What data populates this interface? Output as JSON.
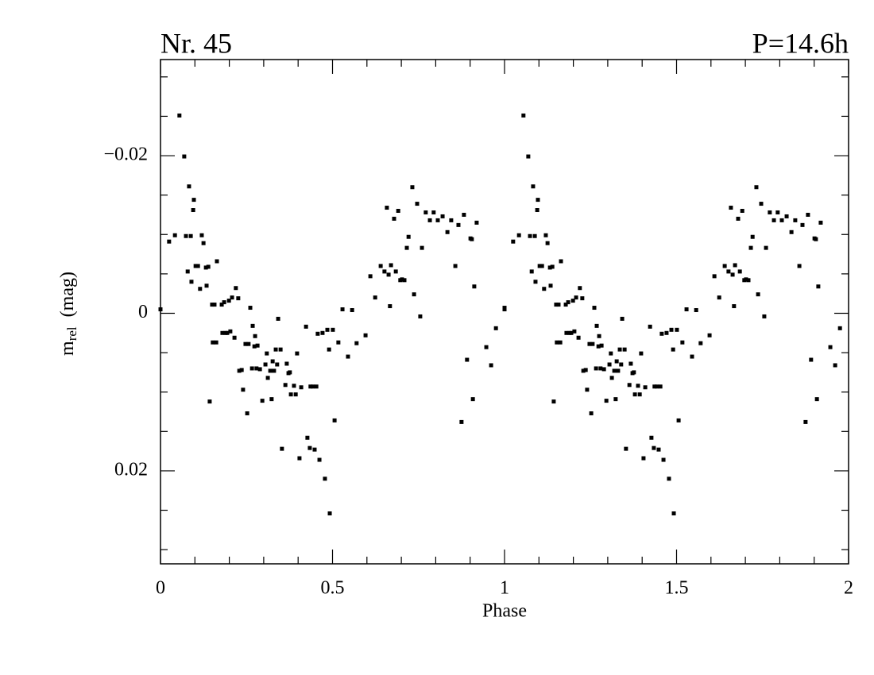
{
  "chart_data": {
    "type": "scatter",
    "title": "Nr. 45",
    "subtitle": "P=14.6h",
    "xlabel": "Phase",
    "ylabel": {
      "text": "m",
      "subscript": "rel",
      "unit": "(mag)"
    },
    "xlim": [
      0,
      2
    ],
    "ylim": [
      -0.0322,
      0.0318
    ],
    "y_inverted": true,
    "xticks": [
      0,
      0.5,
      1,
      1.5,
      2
    ],
    "xminorticks": [
      0.1,
      0.2,
      0.3,
      0.4,
      0.6,
      0.7,
      0.8,
      0.9,
      1.1,
      1.2,
      1.3,
      1.4,
      1.6,
      1.7,
      1.8,
      1.9
    ],
    "yticks": [
      {
        "value": -0.02,
        "label": "−0.02"
      },
      0,
      0.02
    ],
    "yminorticks": [
      -0.03,
      -0.025,
      -0.015,
      -0.01,
      -0.005,
      0.005,
      0.01,
      0.015,
      0.025,
      0.03
    ],
    "color": "#000000",
    "x": [
      0.0,
      0.025,
      0.042,
      0.055,
      0.069,
      0.074,
      0.079,
      0.083,
      0.088,
      0.09,
      0.095,
      0.097,
      0.102,
      0.109,
      0.115,
      0.12,
      0.125,
      0.132,
      0.134,
      0.139,
      0.143,
      0.15,
      0.152,
      0.157,
      0.162,
      0.164,
      0.178,
      0.18,
      0.185,
      0.189,
      0.194,
      0.199,
      0.203,
      0.208,
      0.215,
      0.219,
      0.226,
      0.229,
      0.236,
      0.24,
      0.247,
      0.252,
      0.256,
      0.261,
      0.266,
      0.268,
      0.273,
      0.275,
      0.279,
      0.282,
      0.289,
      0.296,
      0.305,
      0.309,
      0.312,
      0.319,
      0.323,
      0.326,
      0.33,
      0.335,
      0.339,
      0.342,
      0.349,
      0.353,
      0.363,
      0.367,
      0.372,
      0.376,
      0.379,
      0.388,
      0.393,
      0.397,
      0.404,
      0.409,
      0.423,
      0.427,
      0.434,
      0.436,
      0.443,
      0.448,
      0.453,
      0.457,
      0.462,
      0.471,
      0.478,
      0.485,
      0.49,
      0.492,
      0.501,
      0.506,
      0.517,
      0.529,
      0.545,
      0.557,
      0.57,
      0.596,
      0.61,
      0.624,
      0.64,
      0.651,
      0.658,
      0.663,
      0.667,
      0.67,
      0.679,
      0.684,
      0.691,
      0.697,
      0.702,
      0.709,
      0.716,
      0.721,
      0.732,
      0.737,
      0.746,
      0.755,
      0.76,
      0.771,
      0.783,
      0.794,
      0.806,
      0.82,
      0.834,
      0.845,
      0.857,
      0.866,
      0.875,
      0.882,
      0.891,
      0.901,
      0.905,
      0.908,
      0.912,
      0.919,
      0.947,
      0.961,
      0.975,
      1.0,
      1.0,
      1.025,
      1.042,
      1.055,
      1.069,
      1.074,
      1.079,
      1.083,
      1.088,
      1.09,
      1.095,
      1.097,
      1.102,
      1.109,
      1.115,
      1.12,
      1.125,
      1.132,
      1.134,
      1.139,
      1.143,
      1.15,
      1.152,
      1.157,
      1.162,
      1.164,
      1.178,
      1.18,
      1.185,
      1.189,
      1.194,
      1.199,
      1.203,
      1.208,
      1.215,
      1.219,
      1.226,
      1.229,
      1.236,
      1.24,
      1.247,
      1.252,
      1.256,
      1.261,
      1.266,
      1.268,
      1.273,
      1.275,
      1.279,
      1.282,
      1.289,
      1.296,
      1.305,
      1.309,
      1.312,
      1.319,
      1.323,
      1.326,
      1.33,
      1.335,
      1.339,
      1.342,
      1.349,
      1.353,
      1.363,
      1.367,
      1.372,
      1.376,
      1.379,
      1.388,
      1.393,
      1.397,
      1.404,
      1.409,
      1.423,
      1.427,
      1.434,
      1.436,
      1.443,
      1.448,
      1.453,
      1.457,
      1.462,
      1.471,
      1.478,
      1.485,
      1.49,
      1.492,
      1.501,
      1.506,
      1.517,
      1.529,
      1.545,
      1.557,
      1.57,
      1.596,
      1.61,
      1.624,
      1.64,
      1.651,
      1.658,
      1.663,
      1.667,
      1.67,
      1.679,
      1.684,
      1.691,
      1.697,
      1.702,
      1.709,
      1.716,
      1.721,
      1.732,
      1.737,
      1.746,
      1.755,
      1.76,
      1.771,
      1.783,
      1.794,
      1.806,
      1.82,
      1.834,
      1.845,
      1.857,
      1.866,
      1.875,
      1.882,
      1.891,
      1.901,
      1.905,
      1.908,
      1.912,
      1.919,
      1.947,
      1.961,
      1.975
    ],
    "y": [
      -0.0005,
      -0.0091,
      -0.0099,
      -0.0251,
      -0.0199,
      -0.0098,
      -0.0053,
      -0.0161,
      -0.0098,
      -0.004,
      -0.0131,
      -0.0144,
      -0.006,
      -0.006,
      -0.0031,
      -0.0099,
      -0.0089,
      -0.0058,
      -0.0035,
      -0.0059,
      0.0112,
      -0.0011,
      0.0037,
      -0.0011,
      0.0037,
      -0.0066,
      -0.0011,
      0.0025,
      -0.0014,
      0.0025,
      0.0025,
      -0.0016,
      0.0023,
      -0.002,
      0.0031,
      -0.0032,
      -0.0019,
      0.0073,
      0.0072,
      0.0097,
      0.0039,
      0.0127,
      0.0039,
      -0.0007,
      0.007,
      0.0016,
      0.0042,
      0.0029,
      0.007,
      0.0041,
      0.0071,
      0.0111,
      0.0065,
      0.0051,
      0.0082,
      0.0073,
      0.0109,
      0.0061,
      0.0073,
      0.0046,
      0.0065,
      0.0007,
      0.0046,
      0.0172,
      0.0091,
      0.0064,
      0.0076,
      0.0075,
      0.0103,
      0.0092,
      0.0103,
      0.0051,
      0.0184,
      0.0094,
      0.0017,
      0.0158,
      0.0171,
      0.0093,
      0.0093,
      0.0173,
      0.0093,
      0.0026,
      0.0186,
      0.0025,
      0.021,
      0.0021,
      0.0046,
      0.0254,
      0.0021,
      0.0136,
      0.0037,
      -0.0005,
      0.0055,
      -0.0004,
      0.0038,
      0.0028,
      -0.0047,
      -0.002,
      -0.006,
      -0.0053,
      -0.0134,
      -0.0049,
      -0.0009,
      -0.0061,
      -0.012,
      -0.0053,
      -0.013,
      -0.0042,
      -0.0043,
      -0.0042,
      -0.0083,
      -0.0097,
      -0.016,
      -0.0024,
      -0.0139,
      0.0004,
      -0.0083,
      -0.0128,
      -0.0118,
      -0.0128,
      -0.0118,
      -0.0123,
      -0.0103,
      -0.0118,
      -0.006,
      -0.0112,
      0.0138,
      -0.0125,
      0.0059,
      -0.0095,
      -0.0094,
      0.0109,
      -0.0034,
      -0.0115,
      0.0043,
      0.0066,
      0.0019,
      -0.0007,
      -0.0005,
      -0.0091,
      -0.0099,
      -0.0251,
      -0.0199,
      -0.0098,
      -0.0053,
      -0.0161,
      -0.0098,
      -0.004,
      -0.0131,
      -0.0144,
      -0.006,
      -0.006,
      -0.0031,
      -0.0099,
      -0.0089,
      -0.0058,
      -0.0035,
      -0.0059,
      0.0112,
      -0.0011,
      0.0037,
      -0.0011,
      0.0037,
      -0.0066,
      -0.0011,
      0.0025,
      -0.0014,
      0.0025,
      0.0025,
      -0.0016,
      0.0023,
      -0.002,
      0.0031,
      -0.0032,
      -0.0019,
      0.0073,
      0.0072,
      0.0097,
      0.0039,
      0.0127,
      0.0039,
      -0.0007,
      0.007,
      0.0016,
      0.0042,
      0.0029,
      0.007,
      0.0041,
      0.0071,
      0.0111,
      0.0065,
      0.0051,
      0.0082,
      0.0073,
      0.0109,
      0.0061,
      0.0073,
      0.0046,
      0.0065,
      0.0007,
      0.0046,
      0.0172,
      0.0091,
      0.0064,
      0.0076,
      0.0075,
      0.0103,
      0.0092,
      0.0103,
      0.0051,
      0.0184,
      0.0094,
      0.0017,
      0.0158,
      0.0171,
      0.0093,
      0.0093,
      0.0173,
      0.0093,
      0.0026,
      0.0186,
      0.0025,
      0.021,
      0.0021,
      0.0046,
      0.0254,
      0.0021,
      0.0136,
      0.0037,
      -0.0005,
      0.0055,
      -0.0004,
      0.0038,
      0.0028,
      -0.0047,
      -0.002,
      -0.006,
      -0.0053,
      -0.0134,
      -0.0049,
      -0.0009,
      -0.0061,
      -0.012,
      -0.0053,
      -0.013,
      -0.0042,
      -0.0043,
      -0.0042,
      -0.0083,
      -0.0097,
      -0.016,
      -0.0024,
      -0.0139,
      0.0004,
      -0.0083,
      -0.0128,
      -0.0118,
      -0.0128,
      -0.0118,
      -0.0123,
      -0.0103,
      -0.0118,
      -0.006,
      -0.0112,
      0.0138,
      -0.0125,
      0.0059,
      -0.0095,
      -0.0094,
      0.0109,
      -0.0034,
      -0.0115,
      0.0043,
      0.0066,
      0.0019
    ]
  }
}
